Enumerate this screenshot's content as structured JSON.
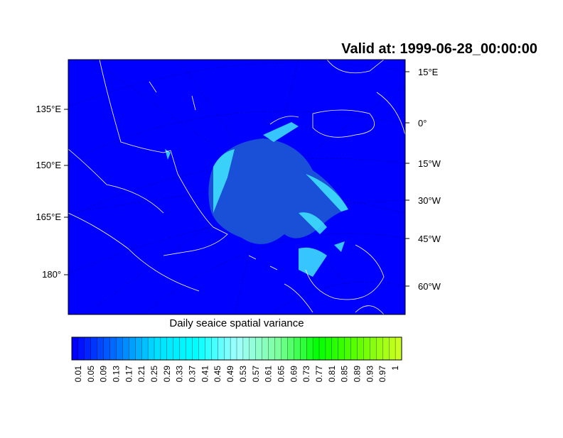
{
  "title": "Valid at: 1999-06-28_00:00:00",
  "map": {
    "left_labels": [
      "135°E",
      "150°E",
      "165°E",
      "180°"
    ],
    "right_labels": [
      "15°E",
      "0°",
      "15°W",
      "30°W",
      "45°W",
      "60°W"
    ],
    "ocean_color": "#0000ff"
  },
  "colorbar": {
    "title": "Daily seaice spatial variance",
    "labels": [
      0.01,
      0.05,
      0.09,
      0.13,
      0.17,
      0.21,
      0.25,
      0.29,
      0.33,
      0.37,
      0.41,
      0.45,
      0.49,
      0.53,
      0.57,
      0.61,
      0.65,
      0.69,
      0.73,
      0.77,
      0.81,
      0.85,
      0.89,
      0.93,
      0.97,
      1
    ],
    "colormap": [
      "#0000ff",
      "#0070ff",
      "#00e0ff",
      "#00ffff",
      "#a0ffff",
      "#80ffa0",
      "#00ff00",
      "#60ff00",
      "#c8ff20"
    ]
  }
}
